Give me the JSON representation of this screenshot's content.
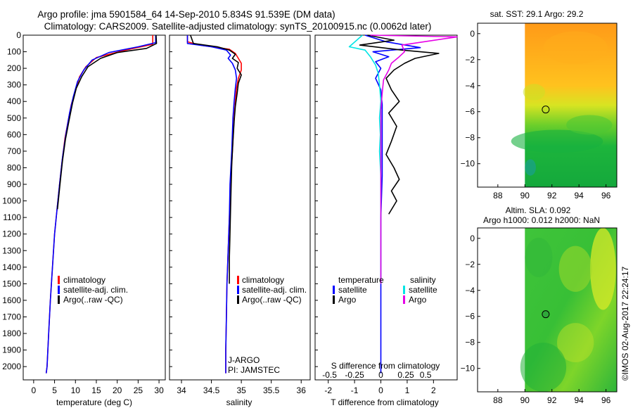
{
  "header": {
    "title_line1": "Argo profile: jma 5901584_64 14-Sep-2010 5.834S 91.539E (DM data)",
    "title_line2": "Climatology: CARS2009. Satellite-adjusted climatology: synTS_20100915.nc (0.0062d later)"
  },
  "footer": {
    "credit": "©IMOS 02-Aug-2017 22:24:17"
  },
  "colors": {
    "climatology": "#ff0000",
    "satellite": "#0000ff",
    "argo": "#000000",
    "salinity_satellite": "#00e5e5",
    "salinity_argo": "#e600e6"
  },
  "chart_data": [
    {
      "type": "line",
      "id": "temperature",
      "xlabel": "temperature (deg C)",
      "ylabel": "",
      "xlim": [
        -2.5,
        31.5
      ],
      "ylim": [
        2080,
        0
      ],
      "xticks": [
        0,
        5,
        10,
        15,
        20,
        25,
        30
      ],
      "yticks": [
        0,
        100,
        200,
        300,
        400,
        500,
        600,
        700,
        800,
        900,
        1000,
        1100,
        1200,
        1300,
        1400,
        1500,
        1600,
        1700,
        1800,
        1900,
        2000
      ],
      "legend": [
        "climatology",
        "satellite-adj. clim.",
        "Argo(..raw -QC)"
      ],
      "series": [
        {
          "name": "climatology",
          "color": "#ff0000",
          "points": [
            [
              28.5,
              0
            ],
            [
              28.5,
              55
            ],
            [
              22,
              90
            ],
            [
              15,
              135
            ],
            [
              12.5,
              190
            ],
            [
              11,
              250
            ],
            [
              10,
              330
            ],
            [
              9,
              420
            ],
            [
              8.3,
              510
            ],
            [
              7.5,
              620
            ],
            [
              6.8,
              760
            ],
            [
              6.2,
              900
            ],
            [
              5.6,
              1050
            ],
            [
              5,
              1200
            ],
            [
              4.5,
              1400
            ],
            [
              4,
              1600
            ],
            [
              3.6,
              1800
            ],
            [
              3.2,
              2000
            ],
            [
              3,
              2040
            ]
          ]
        },
        {
          "name": "satellite",
          "color": "#0000ff",
          "points": [
            [
              29.2,
              0
            ],
            [
              29.2,
              45
            ],
            [
              25,
              70
            ],
            [
              18,
              105
            ],
            [
              14,
              150
            ],
            [
              12,
              210
            ],
            [
              10.5,
              280
            ],
            [
              9.5,
              370
            ],
            [
              8.6,
              470
            ],
            [
              7.7,
              600
            ],
            [
              6.9,
              740
            ],
            [
              6.2,
              900
            ],
            [
              5.6,
              1050
            ],
            [
              5,
              1200
            ],
            [
              4.5,
              1400
            ],
            [
              4,
              1600
            ],
            [
              3.6,
              1800
            ],
            [
              3.2,
              2000
            ],
            [
              3,
              2040
            ]
          ]
        },
        {
          "name": "argo",
          "color": "#000000",
          "points": [
            [
              29.3,
              0
            ],
            [
              29.4,
              50
            ],
            [
              27,
              80
            ],
            [
              20,
              105
            ],
            [
              16,
              140
            ],
            [
              13,
              190
            ],
            [
              11.5,
              250
            ],
            [
              10.2,
              320
            ],
            [
              9.3,
              410
            ],
            [
              8.5,
              510
            ],
            [
              7.6,
              630
            ],
            [
              6.9,
              760
            ],
            [
              6.3,
              900
            ],
            [
              5.7,
              1050
            ]
          ]
        }
      ]
    },
    {
      "type": "line",
      "id": "salinity",
      "xlabel": "salinity",
      "xlim": [
        33.8,
        36.15
      ],
      "ylim": [
        2080,
        0
      ],
      "xticks": [
        34,
        34.5,
        35,
        35.5,
        36
      ],
      "legend": [
        "climatology",
        "satellite-adj. clim.",
        "Argo(..raw -QC)"
      ],
      "annotations": [
        "J-ARGO",
        "PI: JAMSTEC"
      ],
      "series": [
        {
          "name": "climatology",
          "color": "#ff0000",
          "points": [
            [
              34.1,
              0
            ],
            [
              34.1,
              40
            ],
            [
              34.3,
              60
            ],
            [
              34.8,
              85
            ],
            [
              34.9,
              110
            ],
            [
              34.95,
              140
            ],
            [
              35.0,
              170
            ],
            [
              35.0,
              210
            ],
            [
              34.95,
              260
            ],
            [
              34.92,
              320
            ],
            [
              34.9,
              400
            ],
            [
              34.88,
              500
            ],
            [
              34.85,
              700
            ],
            [
              34.82,
              900
            ],
            [
              34.8,
              1100
            ],
            [
              34.78,
              1300
            ],
            [
              34.76,
              1500
            ],
            [
              34.75,
              1700
            ],
            [
              34.74,
              1900
            ],
            [
              34.74,
              2040
            ]
          ]
        },
        {
          "name": "satellite",
          "color": "#0000ff",
          "points": [
            [
              34.1,
              0
            ],
            [
              34.1,
              50
            ],
            [
              34.5,
              70
            ],
            [
              34.75,
              90
            ],
            [
              34.82,
              120
            ],
            [
              34.78,
              140
            ],
            [
              34.85,
              170
            ],
            [
              34.9,
              210
            ],
            [
              34.92,
              260
            ],
            [
              34.9,
              320
            ],
            [
              34.88,
              400
            ],
            [
              34.86,
              500
            ],
            [
              34.84,
              700
            ],
            [
              34.81,
              900
            ],
            [
              34.8,
              1100
            ],
            [
              34.78,
              1300
            ],
            [
              34.76,
              1500
            ],
            [
              34.75,
              1700
            ],
            [
              34.74,
              1900
            ],
            [
              34.74,
              2040
            ]
          ]
        },
        {
          "name": "argo",
          "color": "#000000",
          "points": [
            [
              34.15,
              0
            ],
            [
              34.2,
              50
            ],
            [
              34.6,
              70
            ],
            [
              34.8,
              90
            ],
            [
              34.9,
              115
            ],
            [
              34.85,
              140
            ],
            [
              34.95,
              165
            ],
            [
              34.93,
              200
            ],
            [
              35.0,
              240
            ],
            [
              34.95,
              290
            ],
            [
              34.93,
              350
            ],
            [
              34.9,
              430
            ],
            [
              34.88,
              520
            ],
            [
              34.86,
              640
            ],
            [
              34.84,
              780
            ],
            [
              34.83,
              900
            ],
            [
              34.82,
              1050
            ],
            [
              34.81,
              1200
            ],
            [
              34.8,
              1350
            ],
            [
              34.8,
              1500
            ]
          ]
        }
      ]
    },
    {
      "type": "line",
      "id": "difference",
      "xlabel": "T difference from climatology",
      "xlabel_top": "S difference from climatology",
      "xlim": [
        -2.5,
        2.9
      ],
      "ylim": [
        2080,
        0
      ],
      "xticks": [
        -2,
        -1,
        0,
        1,
        2
      ],
      "xticks_s": [
        -0.5,
        -0.25,
        0,
        0.25,
        0.5
      ],
      "xticks_s_pos": [
        -1.95,
        -1.0,
        0,
        0.95,
        1.7
      ],
      "legend": {
        "temperature": [
          "satellite",
          "Argo"
        ],
        "salinity": [
          "satellite",
          "Argo"
        ]
      },
      "legend_titles": {
        "temperature": "temperature",
        "salinity": "salinity"
      },
      "series": [
        {
          "name": "T satellite",
          "color": "#0000ff",
          "points": [
            [
              -0.6,
              0
            ],
            [
              0.2,
              40
            ],
            [
              1.5,
              75
            ],
            [
              -0.3,
              100
            ],
            [
              0.3,
              130
            ],
            [
              -0.2,
              160
            ],
            [
              0,
              200
            ],
            [
              -0.2,
              260
            ],
            [
              0,
              330
            ],
            [
              0.05,
              420
            ],
            [
              0.05,
              540
            ],
            [
              0.05,
              680
            ],
            [
              0.05,
              850
            ],
            [
              0,
              1100
            ],
            [
              0,
              1400
            ],
            [
              0,
              1700
            ],
            [
              0,
              2040
            ]
          ]
        },
        {
          "name": "T argo",
          "color": "#000000",
          "points": [
            [
              -0.5,
              0
            ],
            [
              0.5,
              30
            ],
            [
              -0.8,
              60
            ],
            [
              0.8,
              90
            ],
            [
              2.2,
              110
            ],
            [
              1.3,
              140
            ],
            [
              0.9,
              170
            ],
            [
              0.5,
              210
            ],
            [
              0.2,
              260
            ],
            [
              0.4,
              330
            ],
            [
              0.7,
              400
            ],
            [
              0.3,
              470
            ],
            [
              0.6,
              550
            ],
            [
              0.4,
              640
            ],
            [
              0.2,
              720
            ],
            [
              0.5,
              800
            ],
            [
              0.7,
              870
            ],
            [
              0.4,
              940
            ],
            [
              0.6,
              1000
            ],
            [
              0.3,
              1080
            ]
          ]
        },
        {
          "name": "S satellite",
          "color": "#00e5e5",
          "points": [
            [
              -0.7,
              0
            ],
            [
              -1.2,
              70
            ],
            [
              -0.6,
              90
            ],
            [
              -0.4,
              130
            ],
            [
              -0.2,
              180
            ],
            [
              -0.1,
              230
            ],
            [
              -0.05,
              300
            ],
            [
              0,
              400
            ],
            [
              -0.05,
              500
            ],
            [
              -0.02,
              600
            ],
            [
              -0.05,
              700
            ],
            [
              0,
              850
            ],
            [
              0,
              1050
            ],
            [
              0,
              1300
            ],
            [
              0,
              1500
            ]
          ]
        },
        {
          "name": "S argo",
          "color": "#e600e6",
          "points": [
            [
              -0.4,
              0
            ],
            [
              2.9,
              10
            ],
            [
              0.8,
              60
            ],
            [
              0.9,
              100
            ],
            [
              0.7,
              130
            ],
            [
              0.4,
              170
            ],
            [
              0.3,
              210
            ],
            [
              0.1,
              270
            ],
            [
              0.05,
              350
            ],
            [
              0,
              450
            ],
            [
              0,
              600
            ],
            [
              0,
              800
            ],
            [
              0,
              1000
            ],
            [
              0,
              1300
            ],
            [
              0,
              1500
            ]
          ]
        }
      ]
    },
    {
      "type": "heatmap",
      "id": "sst_map",
      "title": "sat. SST: 29.1  Argo: 29.2",
      "xlim": [
        86.5,
        96.8
      ],
      "ylim": [
        -11.8,
        0.8
      ],
      "xticks": [
        88,
        90,
        92,
        94,
        96
      ],
      "yticks": [
        -10,
        -8,
        -6,
        -4,
        -2,
        0
      ],
      "no_data_below_lon": 90,
      "marker": {
        "lon": 91.539,
        "lat": -5.834
      }
    },
    {
      "type": "heatmap",
      "id": "sla_map",
      "title_line1": "Altim. SLA: 0.092",
      "title_line2": "Argo h1000: 0.012 h2000: NaN",
      "xlim": [
        86.5,
        96.8
      ],
      "ylim": [
        -11.8,
        0.8
      ],
      "xticks": [
        88,
        90,
        92,
        94,
        96
      ],
      "yticks": [
        -10,
        -8,
        -6,
        -4,
        -2,
        0
      ],
      "no_data_below_lon": 90,
      "marker": {
        "lon": 91.539,
        "lat": -5.834
      }
    }
  ]
}
